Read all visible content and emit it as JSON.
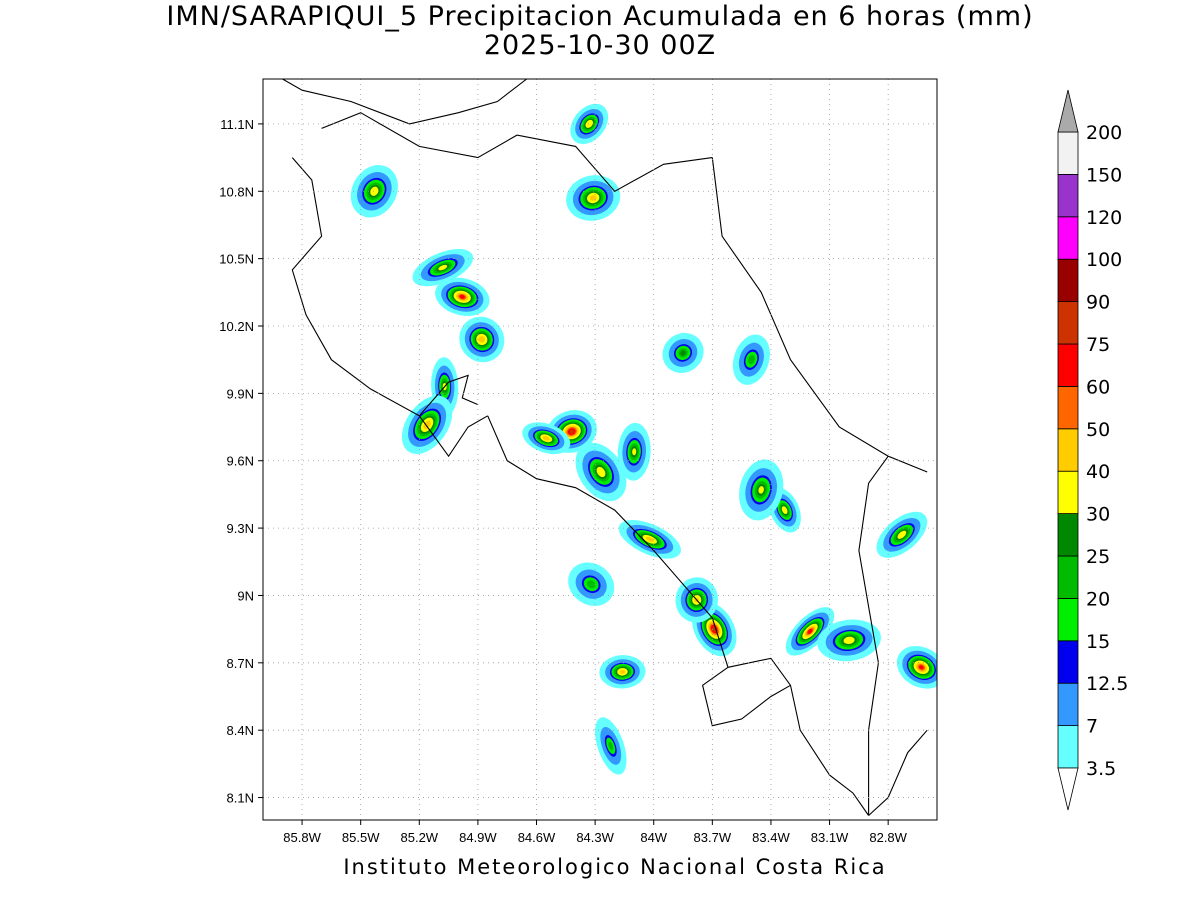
{
  "title": {
    "line1": "IMN/SARAPIQUI_5 Precipitacion Acumulada en 6 horas (mm)",
    "line2": "2025-10-30 00Z"
  },
  "credit": "Instituto Meteorologico Nacional Costa Rica",
  "map": {
    "lon_range": [
      -86.0,
      -82.55
    ],
    "lat_range": [
      8.0,
      11.3
    ],
    "lon_ticks": [
      "85.8W",
      "85.5W",
      "85.2W",
      "84.9W",
      "84.6W",
      "84.3W",
      "84W",
      "83.7W",
      "83.4W",
      "83.1W",
      "82.8W"
    ],
    "lon_tick_values": [
      -85.8,
      -85.5,
      -85.2,
      -84.9,
      -84.6,
      -84.3,
      -84.0,
      -83.7,
      -83.4,
      -83.1,
      -82.8
    ],
    "lat_ticks": [
      "8.1N",
      "8.4N",
      "8.7N",
      "9N",
      "9.3N",
      "9.6N",
      "9.9N",
      "10.2N",
      "10.5N",
      "10.8N",
      "11.1N"
    ],
    "lat_tick_values": [
      8.1,
      8.4,
      8.7,
      9.0,
      9.3,
      9.6,
      9.9,
      10.2,
      10.5,
      10.8,
      11.1
    ],
    "grid": true
  },
  "colorbar": {
    "labels": [
      "3.5",
      "7",
      "12.5",
      "15",
      "20",
      "25",
      "30",
      "40",
      "50",
      "60",
      "75",
      "90",
      "100",
      "120",
      "150",
      "200"
    ],
    "colors": [
      "#ffffff",
      "#66ffff",
      "#3399ff",
      "#0000ee",
      "#00ee00",
      "#00bb00",
      "#008800",
      "#ffff00",
      "#ffcc00",
      "#ff6600",
      "#ff0000",
      "#cc3300",
      "#990000",
      "#ff00ff",
      "#9933cc",
      "#f2f2f2",
      "#aaaaaa"
    ],
    "units": "mm"
  },
  "rain_cells": [
    {
      "lon": -85.43,
      "lat": 10.8,
      "peak": 35
    },
    {
      "lon": -85.08,
      "lat": 10.46,
      "peak": 32
    },
    {
      "lon": -84.98,
      "lat": 10.33,
      "peak": 60
    },
    {
      "lon": -84.88,
      "lat": 10.14,
      "peak": 45
    },
    {
      "lon": -85.07,
      "lat": 9.93,
      "peak": 30
    },
    {
      "lon": -85.16,
      "lat": 9.76,
      "peak": 45
    },
    {
      "lon": -84.42,
      "lat": 9.73,
      "peak": 75
    },
    {
      "lon": -84.55,
      "lat": 9.7,
      "peak": 45
    },
    {
      "lon": -84.27,
      "lat": 9.55,
      "peak": 35
    },
    {
      "lon": -84.1,
      "lat": 9.64,
      "peak": 30
    },
    {
      "lon": -84.33,
      "lat": 11.1,
      "peak": 38
    },
    {
      "lon": -84.31,
      "lat": 10.77,
      "peak": 42
    },
    {
      "lon": -84.02,
      "lat": 9.25,
      "peak": 42
    },
    {
      "lon": -83.69,
      "lat": 8.85,
      "peak": 75
    },
    {
      "lon": -83.78,
      "lat": 8.98,
      "peak": 40
    },
    {
      "lon": -83.2,
      "lat": 8.84,
      "peak": 60
    },
    {
      "lon": -83.0,
      "lat": 8.8,
      "peak": 35
    },
    {
      "lon": -82.63,
      "lat": 8.68,
      "peak": 60
    },
    {
      "lon": -83.33,
      "lat": 9.38,
      "peak": 35
    },
    {
      "lon": -83.45,
      "lat": 9.47,
      "peak": 30
    },
    {
      "lon": -82.73,
      "lat": 9.27,
      "peak": 35
    },
    {
      "lon": -84.16,
      "lat": 8.66,
      "peak": 42
    },
    {
      "lon": -84.32,
      "lat": 9.05,
      "peak": 22
    },
    {
      "lon": -84.22,
      "lat": 8.33,
      "peak": 20
    },
    {
      "lon": -83.5,
      "lat": 10.05,
      "peak": 22
    },
    {
      "lon": -83.85,
      "lat": 10.08,
      "peak": 25
    }
  ]
}
